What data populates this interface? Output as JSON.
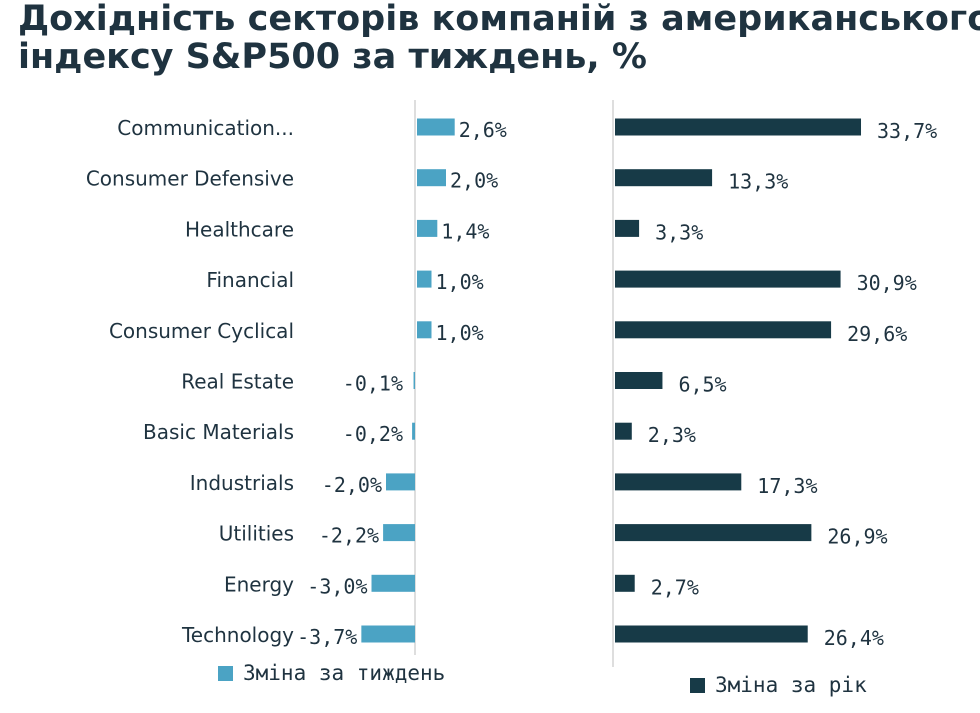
{
  "title_line1": "Дохідність секторів компаній з американського",
  "title_line2": "індексу S&P500 за тиждень, %",
  "colors": {
    "weekly": "#4ba3c4",
    "yearly": "#173a47",
    "axis": "#c8c8c8"
  },
  "legend": {
    "weekly": "Зміна за тиждень",
    "yearly": "Зміна за рік"
  },
  "chart_data": {
    "type": "bar",
    "orientation": "horizontal",
    "categories": [
      "Communication...",
      "Consumer Defensive",
      "Healthcare",
      "Financial",
      "Consumer Cyclical",
      "Real Estate",
      "Basic Materials",
      "Industrials",
      "Utilities",
      "Energy",
      "Technology"
    ],
    "series": [
      {
        "name": "Зміна за тиждень",
        "values": [
          2.6,
          2.0,
          1.4,
          1.0,
          1.0,
          -0.1,
          -0.2,
          -2.0,
          -2.2,
          -3.0,
          -3.7
        ],
        "labels": [
          "2,6%",
          "2,0%",
          "1,4%",
          "1,0%",
          "1,0%",
          "-0,1%",
          "-0,2%",
          "-2,0%",
          "-2,2%",
          "-3,0%",
          "-3,7%"
        ]
      },
      {
        "name": "Зміна за рік",
        "values": [
          33.7,
          13.3,
          3.3,
          30.9,
          29.6,
          6.5,
          2.3,
          17.3,
          26.9,
          2.7,
          26.4
        ],
        "labels": [
          "33,7%",
          "13,3%",
          "3,3%",
          "30,9%",
          "29,6%",
          "6,5%",
          "2,3%",
          "17,3%",
          "26,9%",
          "2,7%",
          "26,4%"
        ]
      }
    ],
    "legend_position": "bottom",
    "grid": false
  }
}
